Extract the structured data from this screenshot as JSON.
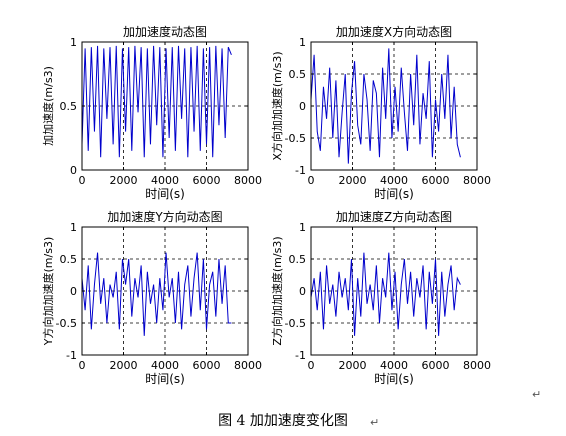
{
  "figure_caption": "图 4  加加速度变化图",
  "paragraph_mark": "↵",
  "caption_paragraph_mark": "↵",
  "colors": {
    "line": "#0000cc",
    "axes": "#000000",
    "grid": "#000000"
  },
  "chart_data": [
    {
      "type": "line",
      "title": "加加速度动态图",
      "xlabel": "时间(s)",
      "ylabel": "加加速度(m/s3)",
      "xlim": [
        0,
        8000
      ],
      "ylim": [
        0,
        1
      ],
      "xticks": [
        0,
        2000,
        4000,
        6000,
        8000
      ],
      "yticks": [
        0,
        0.5,
        1
      ],
      "grid": true,
      "series": [
        {
          "values_note_free": true,
          "x": [
            0,
            150,
            300,
            450,
            600,
            750,
            900,
            1050,
            1200,
            1350,
            1500,
            1650,
            1800,
            1950,
            2100,
            2250,
            2400,
            2550,
            2700,
            2850,
            3000,
            3150,
            3300,
            3450,
            3600,
            3750,
            3900,
            4050,
            4200,
            4350,
            4500,
            4650,
            4800,
            4950,
            5100,
            5250,
            5400,
            5550,
            5700,
            5850,
            6000,
            6150,
            6300,
            6450,
            6600,
            6750,
            6900,
            7050,
            7200
          ],
          "y": [
            0.2,
            0.95,
            0.15,
            0.96,
            0.3,
            0.97,
            0.1,
            0.95,
            0.4,
            0.96,
            0.2,
            0.97,
            0.1,
            0.95,
            0.3,
            0.96,
            0.15,
            0.97,
            0.45,
            0.96,
            0.1,
            0.95,
            0.2,
            0.97,
            0.35,
            0.96,
            0.1,
            0.95,
            0.25,
            0.96,
            0.15,
            0.97,
            0.4,
            0.95,
            0.1,
            0.96,
            0.3,
            0.97,
            0.15,
            0.95,
            0.2,
            0.96,
            0.1,
            0.97,
            0.35,
            0.95,
            0.25,
            0.96,
            0.9
          ]
        }
      ]
    },
    {
      "type": "line",
      "title": "加加速度X方向动态图",
      "xlabel": "时间(s)",
      "ylabel": "X方向加加速度(m/s3)",
      "xlim": [
        0,
        8000
      ],
      "ylim": [
        -1,
        1
      ],
      "xticks": [
        0,
        2000,
        4000,
        6000,
        8000
      ],
      "yticks": [
        -1,
        -0.5,
        0,
        0.5,
        1
      ],
      "grid": true,
      "series": [
        {
          "x": [
            0,
            150,
            300,
            450,
            600,
            750,
            900,
            1050,
            1200,
            1350,
            1500,
            1650,
            1800,
            1950,
            2100,
            2250,
            2400,
            2550,
            2700,
            2850,
            3000,
            3150,
            3300,
            3450,
            3600,
            3750,
            3900,
            4050,
            4200,
            4350,
            4500,
            4650,
            4800,
            4950,
            5100,
            5250,
            5400,
            5550,
            5700,
            5850,
            6000,
            6150,
            6300,
            6450,
            6600,
            6750,
            6900,
            7050,
            7200
          ],
          "y": [
            0.1,
            0.8,
            -0.4,
            -0.7,
            0.3,
            -0.2,
            0.6,
            -0.5,
            0.4,
            -0.8,
            -0.1,
            0.5,
            -0.9,
            0.2,
            0.7,
            -0.3,
            -0.6,
            0.5,
            0.1,
            -0.7,
            0.4,
            0.2,
            -0.8,
            0.6,
            -0.2,
            0.9,
            -0.5,
            0.3,
            -0.4,
            0.6,
            -0.1,
            -0.7,
            0.5,
            -0.3,
            0.8,
            -0.6,
            0.2,
            -0.2,
            0.7,
            -0.8,
            0.1,
            -0.4,
            0.5,
            -0.2,
            0.8,
            -0.5,
            0.3,
            -0.6,
            -0.8
          ]
        }
      ]
    },
    {
      "type": "line",
      "title": "加加速度Y方向动态图",
      "xlabel": "时间(s)",
      "ylabel": "Y方向加加速度(m/s3)",
      "xlim": [
        0,
        8000
      ],
      "ylim": [
        -1,
        1
      ],
      "xticks": [
        0,
        2000,
        4000,
        6000,
        8000
      ],
      "yticks": [
        -1,
        -0.5,
        0,
        0.5,
        1
      ],
      "grid": true,
      "series": [
        {
          "x": [
            0,
            150,
            300,
            450,
            600,
            750,
            900,
            1050,
            1200,
            1350,
            1500,
            1650,
            1800,
            1950,
            2100,
            2250,
            2400,
            2550,
            2700,
            2850,
            3000,
            3150,
            3300,
            3450,
            3600,
            3750,
            3900,
            4050,
            4200,
            4350,
            4500,
            4650,
            4800,
            4950,
            5100,
            5250,
            5400,
            5550,
            5700,
            5850,
            6000,
            6150,
            6300,
            6450,
            6600,
            6750,
            6900,
            7050,
            7200
          ],
          "y": [
            0.2,
            -0.3,
            0.4,
            -0.6,
            0.1,
            0.6,
            -0.2,
            0.2,
            -0.5,
            0.1,
            -0.1,
            0.3,
            -0.6,
            0.5,
            0.1,
            0.5,
            -0.4,
            0.2,
            -0.1,
            0.4,
            -0.7,
            0.3,
            -0.2,
            0.1,
            -0.5,
            0.2,
            -0.3,
            0.6,
            -0.1,
            0.2,
            -0.5,
            0.3,
            -0.6,
            0.1,
            0.4,
            -0.4,
            0.2,
            0.6,
            -0.3,
            0.5,
            -0.6,
            0.1,
            0.3,
            -0.4,
            0.5,
            -0.2,
            0.4,
            -0.5,
            -0.5
          ]
        }
      ]
    },
    {
      "type": "line",
      "title": "加加速度Z方向动态图",
      "xlabel": "时间(s)",
      "ylabel": "Z方向加加速度(m/s3)",
      "xlim": [
        0,
        8000
      ],
      "ylim": [
        -1,
        1
      ],
      "xticks": [
        0,
        2000,
        4000,
        6000,
        8000
      ],
      "yticks": [
        -1,
        -0.5,
        0,
        0.5,
        1
      ],
      "grid": true,
      "series": [
        {
          "x": [
            0,
            150,
            300,
            450,
            600,
            750,
            900,
            1050,
            1200,
            1350,
            1500,
            1650,
            1800,
            1950,
            2100,
            2250,
            2400,
            2550,
            2700,
            2850,
            3000,
            3150,
            3300,
            3450,
            3600,
            3750,
            3900,
            4050,
            4200,
            4350,
            4500,
            4650,
            4800,
            4950,
            5100,
            5250,
            5400,
            5550,
            5700,
            5850,
            6000,
            6150,
            6300,
            6450,
            6600,
            6750,
            6900,
            7050,
            7200
          ],
          "y": [
            -0.1,
            0.2,
            -0.3,
            0.3,
            -0.6,
            0.4,
            -0.2,
            0.1,
            -0.4,
            0.3,
            -0.1,
            0.2,
            -0.3,
            0.5,
            -0.7,
            0.2,
            -0.4,
            0.6,
            -0.2,
            0.1,
            -0.3,
            0.4,
            -0.5,
            0.2,
            -0.1,
            0.6,
            -0.3,
            0.3,
            -0.6,
            0.1,
            0.5,
            -0.2,
            0.3,
            -0.4,
            0.2,
            -0.1,
            0.4,
            -0.6,
            0.3,
            -0.2,
            0.5,
            -0.7,
            0.3,
            -0.4,
            0.1,
            0.4,
            -0.3,
            0.2,
            0.1
          ]
        }
      ]
    }
  ]
}
